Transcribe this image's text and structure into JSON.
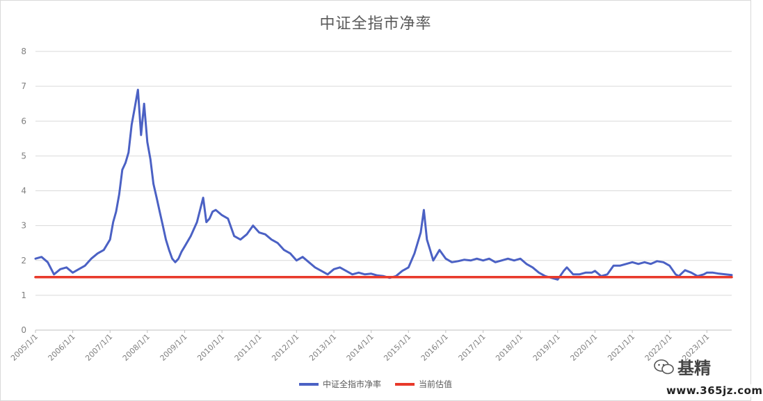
{
  "chart_data": {
    "type": "line",
    "title": "中证全指市净率",
    "ylim": [
      0,
      8
    ],
    "yticks": [
      "0",
      "1",
      "2",
      "3",
      "4",
      "5",
      "6",
      "7",
      "8"
    ],
    "xticks": [
      "2005/1/1",
      "2006/1/1",
      "2007/1/1",
      "2008/1/1",
      "2009/1/1",
      "2010/1/1",
      "2011/1/1",
      "2012/1/1",
      "2013/1/1",
      "2014/1/1",
      "2015/1/1",
      "2016/1/1",
      "2017/1/1",
      "2018/1/1",
      "2019/1/1",
      "2020/1/1",
      "2021/1/1",
      "2022/1/1",
      "2023/1/1"
    ],
    "x_range": [
      "2005/1/1",
      "2023/9/1"
    ],
    "grid": "horizontal",
    "legend_position": "bottom",
    "series": [
      {
        "name": "中证全指市净率",
        "color": "#4b61c4",
        "points": [
          [
            "2005/1/1",
            2.05
          ],
          [
            "2005/3/1",
            2.1
          ],
          [
            "2005/5/1",
            1.95
          ],
          [
            "2005/7/1",
            1.6
          ],
          [
            "2005/9/1",
            1.75
          ],
          [
            "2005/11/1",
            1.8
          ],
          [
            "2006/1/1",
            1.65
          ],
          [
            "2006/3/1",
            1.75
          ],
          [
            "2006/5/1",
            1.85
          ],
          [
            "2006/7/1",
            2.05
          ],
          [
            "2006/9/1",
            2.2
          ],
          [
            "2006/11/1",
            2.3
          ],
          [
            "2007/1/1",
            2.6
          ],
          [
            "2007/2/1",
            3.1
          ],
          [
            "2007/3/1",
            3.4
          ],
          [
            "2007/4/1",
            3.9
          ],
          [
            "2007/5/1",
            4.6
          ],
          [
            "2007/6/1",
            4.8
          ],
          [
            "2007/7/1",
            5.1
          ],
          [
            "2007/8/1",
            5.9
          ],
          [
            "2007/9/1",
            6.4
          ],
          [
            "2007/10/1",
            6.9
          ],
          [
            "2007/11/1",
            5.6
          ],
          [
            "2007/12/1",
            6.5
          ],
          [
            "2008/1/1",
            5.4
          ],
          [
            "2008/2/1",
            4.9
          ],
          [
            "2008/3/1",
            4.2
          ],
          [
            "2008/4/1",
            3.8
          ],
          [
            "2008/5/1",
            3.4
          ],
          [
            "2008/6/1",
            3.0
          ],
          [
            "2008/7/1",
            2.6
          ],
          [
            "2008/8/1",
            2.3
          ],
          [
            "2008/9/1",
            2.05
          ],
          [
            "2008/10/1",
            1.95
          ],
          [
            "2008/11/1",
            2.05
          ],
          [
            "2008/12/1",
            2.25
          ],
          [
            "2009/1/1",
            2.4
          ],
          [
            "2009/3/1",
            2.7
          ],
          [
            "2009/5/1",
            3.1
          ],
          [
            "2009/7/1",
            3.8
          ],
          [
            "2009/8/1",
            3.1
          ],
          [
            "2009/9/1",
            3.2
          ],
          [
            "2009/10/1",
            3.4
          ],
          [
            "2009/11/1",
            3.45
          ],
          [
            "2010/1/1",
            3.3
          ],
          [
            "2010/3/1",
            3.2
          ],
          [
            "2010/5/1",
            2.7
          ],
          [
            "2010/7/1",
            2.6
          ],
          [
            "2010/9/1",
            2.75
          ],
          [
            "2010/11/1",
            3.0
          ],
          [
            "2011/1/1",
            2.8
          ],
          [
            "2011/3/1",
            2.75
          ],
          [
            "2011/5/1",
            2.6
          ],
          [
            "2011/7/1",
            2.5
          ],
          [
            "2011/9/1",
            2.3
          ],
          [
            "2011/11/1",
            2.2
          ],
          [
            "2012/1/1",
            2.0
          ],
          [
            "2012/3/1",
            2.1
          ],
          [
            "2012/5/1",
            1.95
          ],
          [
            "2012/7/1",
            1.8
          ],
          [
            "2012/9/1",
            1.7
          ],
          [
            "2012/11/1",
            1.6
          ],
          [
            "2013/1/1",
            1.75
          ],
          [
            "2013/3/1",
            1.8
          ],
          [
            "2013/5/1",
            1.7
          ],
          [
            "2013/7/1",
            1.6
          ],
          [
            "2013/9/1",
            1.65
          ],
          [
            "2013/11/1",
            1.6
          ],
          [
            "2014/1/1",
            1.62
          ],
          [
            "2014/3/1",
            1.57
          ],
          [
            "2014/5/1",
            1.55
          ],
          [
            "2014/7/1",
            1.5
          ],
          [
            "2014/9/1",
            1.55
          ],
          [
            "2014/11/1",
            1.7
          ],
          [
            "2015/1/1",
            1.8
          ],
          [
            "2015/3/1",
            2.2
          ],
          [
            "2015/5/1",
            2.8
          ],
          [
            "2015/6/1",
            3.45
          ],
          [
            "2015/7/1",
            2.6
          ],
          [
            "2015/8/1",
            2.3
          ],
          [
            "2015/9/1",
            2.0
          ],
          [
            "2015/11/1",
            2.3
          ],
          [
            "2016/1/1",
            2.05
          ],
          [
            "2016/3/1",
            1.95
          ],
          [
            "2016/5/1",
            1.98
          ],
          [
            "2016/7/1",
            2.02
          ],
          [
            "2016/9/1",
            2.0
          ],
          [
            "2016/11/1",
            2.05
          ],
          [
            "2017/1/1",
            2.0
          ],
          [
            "2017/3/1",
            2.05
          ],
          [
            "2017/5/1",
            1.95
          ],
          [
            "2017/7/1",
            2.0
          ],
          [
            "2017/9/1",
            2.05
          ],
          [
            "2017/11/1",
            2.0
          ],
          [
            "2018/1/1",
            2.05
          ],
          [
            "2018/3/1",
            1.9
          ],
          [
            "2018/5/1",
            1.8
          ],
          [
            "2018/7/1",
            1.65
          ],
          [
            "2018/9/1",
            1.55
          ],
          [
            "2018/11/1",
            1.5
          ],
          [
            "2019/1/1",
            1.45
          ],
          [
            "2019/3/1",
            1.7
          ],
          [
            "2019/4/1",
            1.8
          ],
          [
            "2019/6/1",
            1.6
          ],
          [
            "2019/8/1",
            1.6
          ],
          [
            "2019/10/1",
            1.65
          ],
          [
            "2019/12/1",
            1.65
          ],
          [
            "2020/1/1",
            1.7
          ],
          [
            "2020/3/1",
            1.55
          ],
          [
            "2020/5/1",
            1.6
          ],
          [
            "2020/7/1",
            1.85
          ],
          [
            "2020/9/1",
            1.85
          ],
          [
            "2020/11/1",
            1.9
          ],
          [
            "2021/1/1",
            1.95
          ],
          [
            "2021/3/1",
            1.9
          ],
          [
            "2021/5/1",
            1.95
          ],
          [
            "2021/7/1",
            1.9
          ],
          [
            "2021/9/1",
            1.98
          ],
          [
            "2021/11/1",
            1.95
          ],
          [
            "2022/1/1",
            1.85
          ],
          [
            "2022/3/1",
            1.6
          ],
          [
            "2022/4/1",
            1.55
          ],
          [
            "2022/6/1",
            1.72
          ],
          [
            "2022/8/1",
            1.65
          ],
          [
            "2022/10/1",
            1.55
          ],
          [
            "2022/12/1",
            1.6
          ],
          [
            "2023/1/1",
            1.65
          ],
          [
            "2023/3/1",
            1.65
          ],
          [
            "2023/5/1",
            1.62
          ],
          [
            "2023/7/1",
            1.6
          ],
          [
            "2023/9/1",
            1.58
          ]
        ]
      },
      {
        "name": "当前估值",
        "color": "#e8392a",
        "points": [
          [
            "2005/1/1",
            1.52
          ],
          [
            "2023/9/1",
            1.52
          ]
        ]
      }
    ]
  },
  "watermark": {
    "label": "基精",
    "url": "www.365jz.com"
  }
}
